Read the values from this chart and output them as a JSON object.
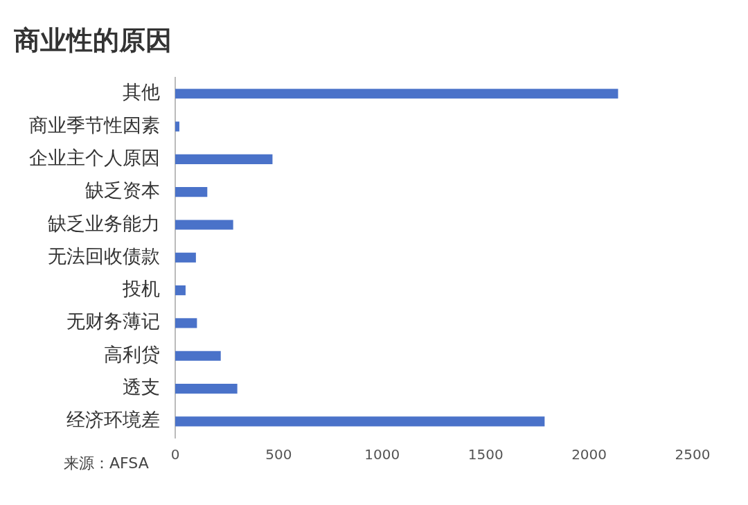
{
  "chart_data": {
    "type": "bar",
    "orientation": "horizontal",
    "title": "商业性的原因",
    "categories": [
      "其他",
      "商业季节性因素",
      "企业主个人原因",
      "缺乏资本",
      "缺乏业务能力",
      "无法回收债款",
      "投机",
      "无财务薄记",
      "高利贷",
      "透支",
      "经济环境差"
    ],
    "values": [
      2140,
      20,
      470,
      155,
      280,
      100,
      50,
      105,
      220,
      300,
      1785
    ],
    "color": "#4a72c9",
    "xlim": [
      0,
      2500
    ],
    "xticks": [
      0,
      500,
      1000,
      1500,
      2000,
      2500
    ],
    "annotations": [
      "来源：AFSA"
    ]
  }
}
